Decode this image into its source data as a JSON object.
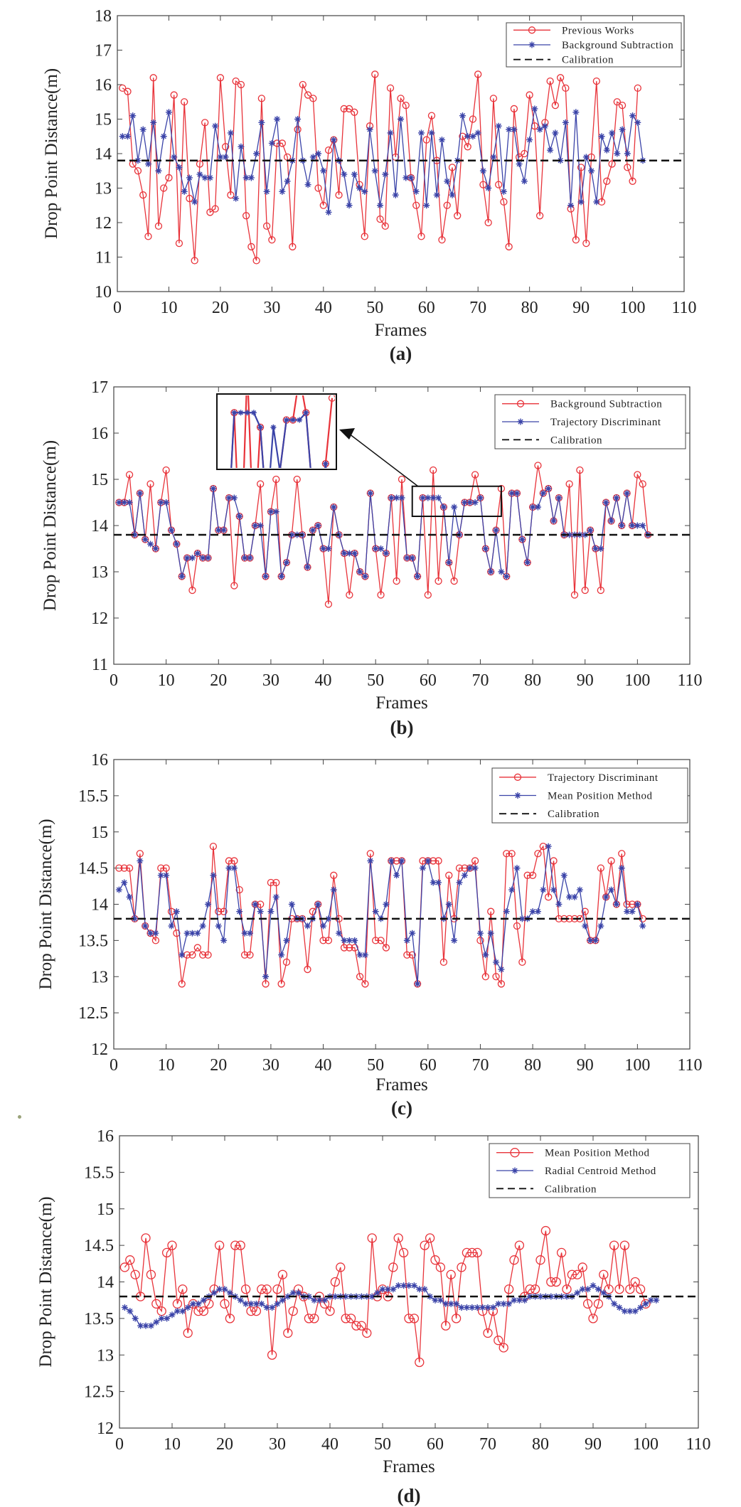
{
  "colors": {
    "red": "#e8333a",
    "blue": "#3a43a8",
    "black": "#111111",
    "axis": "#444444"
  },
  "chart_data": [
    {
      "type": "line",
      "id": "a",
      "caption": "(a)",
      "xlabel": "Frames",
      "ylabel": "Drop Point Distance(m)",
      "xlim": [
        0,
        110
      ],
      "ylim": [
        10,
        18
      ],
      "xticks": [
        "0",
        "10",
        "20",
        "30",
        "40",
        "50",
        "60",
        "70",
        "80",
        "90",
        "100",
        "110"
      ],
      "yticks": [
        "10",
        "11",
        "12",
        "13",
        "14",
        "15",
        "16",
        "17",
        "18"
      ],
      "calibration": 13.8,
      "legend": [
        "Previous Works",
        "Background Subtraction",
        "Calibration"
      ],
      "series": [
        {
          "name": "Previous Works",
          "color": "red",
          "marker": "circle",
          "values": [
            15.9,
            15.8,
            13.7,
            13.5,
            12.8,
            11.6,
            16.2,
            11.9,
            13.0,
            13.3,
            15.7,
            11.4,
            15.5,
            12.7,
            10.9,
            13.7,
            14.9,
            12.3,
            12.4,
            16.2,
            14.2,
            12.8,
            16.1,
            16.0,
            12.2,
            11.3,
            10.9,
            15.6,
            11.9,
            11.5,
            14.3,
            14.3,
            13.9,
            11.3,
            14.7,
            16.0,
            15.7,
            15.6,
            13.0,
            12.5,
            14.1,
            14.4,
            12.8,
            15.3,
            15.3,
            15.2,
            13.1,
            11.6,
            14.8,
            16.3,
            12.1,
            11.9,
            15.9,
            13.9,
            15.6,
            15.4,
            13.3,
            12.5,
            11.6,
            14.4,
            15.1,
            13.8,
            11.5,
            12.5,
            13.6,
            12.2,
            14.5,
            14.2,
            15.0,
            16.3,
            13.1,
            12.0,
            15.6,
            13.1,
            12.6,
            11.3,
            15.3,
            13.9,
            14.0,
            15.7,
            14.8,
            12.2,
            14.9,
            16.1,
            15.4,
            16.2,
            15.9,
            12.4,
            11.5,
            13.6,
            11.4,
            13.9,
            16.1,
            12.6,
            13.2,
            13.7,
            15.5,
            15.4,
            13.6,
            13.2,
            15.9
          ]
        },
        {
          "name": "Background Subtraction",
          "color": "blue",
          "marker": "star",
          "values": [
            14.5,
            14.5,
            15.1,
            13.8,
            14.7,
            13.7,
            14.9,
            13.5,
            14.5,
            15.2,
            13.9,
            13.6,
            12.9,
            13.3,
            12.6,
            13.4,
            13.3,
            13.3,
            14.8,
            13.9,
            13.9,
            14.6,
            12.7,
            14.2,
            13.3,
            13.3,
            14.0,
            14.9,
            12.9,
            14.3,
            15.0,
            12.9,
            13.2,
            13.8,
            15.0,
            13.8,
            13.1,
            13.9,
            14.0,
            13.5,
            12.3,
            14.4,
            13.8,
            13.4,
            12.5,
            13.4,
            13.0,
            12.9,
            14.7,
            13.5,
            12.5,
            13.4,
            14.6,
            12.8,
            15.0,
            13.3,
            13.3,
            12.9,
            14.6,
            12.5,
            14.6,
            12.8,
            14.4,
            13.2,
            12.8,
            13.8,
            15.1,
            14.5,
            14.5,
            14.6,
            13.5,
            13.0,
            13.9,
            14.8,
            12.9,
            14.7,
            14.7,
            13.7,
            13.2,
            14.4,
            15.3,
            14.7,
            14.8,
            14.1,
            14.6,
            13.8,
            14.9,
            12.5,
            15.2,
            12.6,
            13.9,
            13.5,
            12.6,
            14.5,
            14.1,
            14.6,
            14.0,
            14.7,
            14.0,
            15.1,
            14.9,
            13.8
          ]
        }
      ]
    },
    {
      "type": "line",
      "id": "b",
      "caption": "(b)",
      "xlabel": "Frames",
      "ylabel": "Drop Point Distance(m)",
      "xlim": [
        0,
        110
      ],
      "ylim": [
        11,
        17
      ],
      "xticks": [
        "0",
        "10",
        "20",
        "30",
        "40",
        "50",
        "60",
        "70",
        "80",
        "90",
        "100",
        "110"
      ],
      "yticks": [
        "11",
        "12",
        "13",
        "14",
        "15",
        "16",
        "17"
      ],
      "calibration": 13.8,
      "legend": [
        "Background Subtraction",
        "Trajectory Discriminant",
        "Calibration"
      ],
      "zoom_inset": {
        "x_range": [
          57,
          74
        ],
        "y_range": [
          14.2,
          14.85
        ]
      },
      "series": [
        {
          "name": "Background Subtraction",
          "color": "red",
          "marker": "circle",
          "values": [
            14.5,
            14.5,
            15.1,
            13.8,
            14.7,
            13.7,
            14.9,
            13.5,
            14.5,
            15.2,
            13.9,
            13.6,
            12.9,
            13.3,
            12.6,
            13.4,
            13.3,
            13.3,
            14.8,
            13.9,
            13.9,
            14.6,
            12.7,
            14.2,
            13.3,
            13.3,
            14.0,
            14.9,
            12.9,
            14.3,
            15.0,
            12.9,
            13.2,
            13.8,
            15.0,
            13.8,
            13.1,
            13.9,
            14.0,
            13.5,
            12.3,
            14.4,
            13.8,
            13.4,
            12.5,
            13.4,
            13.0,
            12.9,
            14.7,
            13.5,
            12.5,
            13.4,
            14.6,
            12.8,
            15.0,
            13.3,
            13.3,
            12.9,
            14.6,
            12.5,
            15.2,
            12.8,
            14.4,
            13.2,
            12.8,
            13.8,
            14.5,
            14.5,
            15.1,
            14.6,
            13.5,
            13.0,
            13.9,
            14.8,
            12.9,
            14.7,
            14.7,
            13.7,
            13.2,
            14.4,
            15.3,
            14.7,
            14.8,
            14.1,
            14.6,
            13.8,
            14.9,
            12.5,
            15.2,
            12.6,
            13.9,
            13.5,
            12.6,
            14.5,
            14.1,
            14.6,
            14.0,
            14.7,
            14.0,
            15.1,
            14.9,
            13.8
          ]
        },
        {
          "name": "Trajectory Discriminant",
          "color": "blue",
          "marker": "star",
          "values": [
            14.5,
            14.5,
            14.5,
            13.8,
            14.7,
            13.7,
            13.6,
            13.5,
            14.5,
            14.5,
            13.9,
            13.6,
            12.9,
            13.3,
            13.3,
            13.4,
            13.3,
            13.3,
            14.8,
            13.9,
            13.9,
            14.6,
            14.6,
            14.2,
            13.3,
            13.3,
            14.0,
            14.0,
            12.9,
            14.3,
            14.3,
            12.9,
            13.2,
            13.8,
            13.8,
            13.8,
            13.1,
            13.9,
            14.0,
            13.5,
            13.5,
            14.4,
            13.8,
            13.4,
            13.4,
            13.4,
            13.0,
            12.9,
            14.7,
            13.5,
            13.5,
            13.4,
            14.6,
            14.6,
            14.6,
            13.3,
            13.3,
            12.9,
            14.6,
            14.6,
            14.6,
            14.6,
            14.4,
            13.2,
            14.4,
            13.8,
            14.5,
            14.5,
            14.5,
            14.6,
            13.5,
            13.0,
            13.9,
            13.0,
            12.9,
            14.7,
            14.7,
            13.7,
            13.2,
            14.4,
            14.4,
            14.7,
            14.8,
            14.1,
            14.6,
            13.8,
            13.8,
            13.8,
            13.8,
            13.8,
            13.9,
            13.5,
            13.5,
            14.5,
            14.1,
            14.6,
            14.0,
            14.7,
            14.0,
            14.0,
            14.0,
            13.8
          ]
        }
      ]
    },
    {
      "type": "line",
      "id": "c",
      "caption": "(c)",
      "xlabel": "Frames",
      "ylabel": "Drop Point Distance(m)",
      "xlim": [
        0,
        110
      ],
      "ylim": [
        12,
        16
      ],
      "xticks": [
        "0",
        "10",
        "20",
        "30",
        "40",
        "50",
        "60",
        "70",
        "80",
        "90",
        "100",
        "110"
      ],
      "yticks": [
        "12",
        "12.5",
        "13",
        "13.5",
        "14",
        "14.5",
        "15",
        "15.5",
        "16"
      ],
      "calibration": 13.8,
      "legend": [
        "Trajectory Discriminant",
        "Mean Position Method",
        "Calibration"
      ],
      "series": [
        {
          "name": "Trajectory Discriminant",
          "color": "red",
          "marker": "circle",
          "values": [
            14.5,
            14.5,
            14.5,
            13.8,
            14.7,
            13.7,
            13.6,
            13.5,
            14.5,
            14.5,
            13.9,
            13.6,
            12.9,
            13.3,
            13.3,
            13.4,
            13.3,
            13.3,
            14.8,
            13.9,
            13.9,
            14.6,
            14.6,
            14.2,
            13.3,
            13.3,
            14.0,
            14.0,
            12.9,
            14.3,
            14.3,
            12.9,
            13.2,
            13.8,
            13.8,
            13.8,
            13.1,
            13.9,
            14.0,
            13.5,
            13.5,
            14.4,
            13.8,
            13.4,
            13.4,
            13.4,
            13.0,
            12.9,
            14.7,
            13.5,
            13.5,
            13.4,
            14.6,
            14.6,
            14.6,
            13.3,
            13.3,
            12.9,
            14.6,
            14.6,
            14.6,
            14.6,
            13.2,
            14.4,
            13.8,
            14.5,
            14.5,
            14.5,
            14.6,
            13.5,
            13.0,
            13.9,
            13.0,
            12.9,
            14.7,
            14.7,
            13.7,
            13.2,
            14.4,
            14.4,
            14.7,
            14.8,
            14.1,
            14.6,
            13.8,
            13.8,
            13.8,
            13.8,
            13.8,
            13.9,
            13.5,
            13.5,
            14.5,
            14.1,
            14.6,
            14.0,
            14.7,
            14.0,
            14.0,
            14.0,
            13.8
          ]
        },
        {
          "name": "Mean Position Method",
          "color": "blue",
          "marker": "star",
          "values": [
            14.2,
            14.3,
            14.1,
            13.8,
            14.6,
            13.7,
            13.6,
            13.6,
            14.4,
            14.4,
            13.7,
            13.9,
            13.3,
            13.6,
            13.6,
            13.6,
            13.7,
            14.0,
            14.4,
            13.7,
            13.5,
            14.5,
            14.5,
            13.9,
            13.6,
            13.6,
            14.0,
            13.9,
            13.0,
            13.9,
            14.1,
            13.3,
            13.5,
            14.0,
            13.8,
            13.8,
            13.7,
            13.8,
            14.0,
            13.7,
            13.8,
            14.2,
            13.6,
            13.5,
            13.5,
            13.5,
            13.3,
            13.3,
            14.6,
            13.9,
            13.8,
            14.0,
            14.6,
            14.4,
            14.6,
            13.5,
            13.6,
            12.9,
            14.5,
            14.6,
            14.3,
            14.3,
            13.8,
            14.0,
            13.5,
            14.3,
            14.4,
            14.5,
            14.5,
            13.6,
            13.3,
            13.6,
            13.2,
            13.1,
            13.9,
            14.2,
            14.5,
            13.8,
            13.8,
            13.9,
            13.9,
            14.2,
            14.8,
            14.2,
            14.0,
            14.4,
            14.1,
            14.1,
            14.2,
            13.7,
            13.5,
            13.5,
            13.7,
            14.1,
            14.2,
            14.0,
            14.5,
            13.9,
            13.9,
            14.0,
            13.7
          ]
        }
      ]
    },
    {
      "type": "line",
      "id": "d",
      "caption": "(d)",
      "xlabel": "Frames",
      "ylabel": "Drop Point Distance(m)",
      "xlim": [
        0,
        110
      ],
      "ylim": [
        12,
        16
      ],
      "xticks": [
        "0",
        "10",
        "20",
        "30",
        "40",
        "50",
        "60",
        "70",
        "80",
        "90",
        "100",
        "110"
      ],
      "yticks": [
        "12",
        "12.5",
        "13",
        "13.5",
        "14",
        "14.5",
        "15",
        "15.5",
        "16"
      ],
      "calibration": 13.8,
      "legend": [
        "Mean Position Method",
        "Radial Centroid Method",
        "Calibration"
      ],
      "series": [
        {
          "name": "Mean Position Method",
          "color": "red",
          "marker": "circle",
          "values": [
            14.2,
            14.3,
            14.1,
            13.8,
            14.6,
            14.1,
            13.7,
            13.6,
            14.4,
            14.5,
            13.7,
            13.9,
            13.3,
            13.7,
            13.6,
            13.6,
            13.7,
            13.9,
            14.5,
            13.7,
            13.5,
            14.5,
            14.5,
            13.9,
            13.6,
            13.6,
            13.9,
            13.9,
            13.0,
            13.9,
            14.1,
            13.3,
            13.6,
            13.9,
            13.8,
            13.5,
            13.5,
            13.8,
            13.7,
            13.6,
            14.0,
            14.2,
            13.5,
            13.5,
            13.4,
            13.4,
            13.3,
            14.6,
            13.8,
            13.9,
            13.8,
            14.2,
            14.6,
            14.4,
            13.5,
            13.5,
            12.9,
            14.5,
            14.6,
            14.3,
            14.2,
            13.4,
            14.1,
            13.5,
            14.2,
            14.4,
            14.4,
            14.4,
            13.6,
            13.3,
            13.6,
            13.2,
            13.1,
            13.9,
            14.3,
            14.5,
            13.8,
            13.9,
            13.9,
            14.3,
            14.7,
            14.0,
            14.0,
            14.4,
            13.9,
            14.1,
            14.1,
            14.2,
            13.7,
            13.5,
            13.7,
            14.1,
            13.9,
            14.5,
            13.9,
            14.5,
            13.9,
            14.0,
            13.9,
            13.7
          ]
        },
        {
          "name": "Radial Centroid Method",
          "color": "blue",
          "marker": "star",
          "values": [
            13.65,
            13.6,
            13.5,
            13.4,
            13.4,
            13.4,
            13.45,
            13.5,
            13.5,
            13.55,
            13.6,
            13.6,
            13.65,
            13.7,
            13.7,
            13.75,
            13.8,
            13.85,
            13.9,
            13.9,
            13.85,
            13.8,
            13.75,
            13.7,
            13.7,
            13.7,
            13.7,
            13.65,
            13.65,
            13.7,
            13.75,
            13.8,
            13.85,
            13.85,
            13.8,
            13.8,
            13.75,
            13.75,
            13.75,
            13.8,
            13.8,
            13.8,
            13.8,
            13.8,
            13.8,
            13.8,
            13.8,
            13.8,
            13.85,
            13.9,
            13.9,
            13.9,
            13.95,
            13.95,
            13.95,
            13.95,
            13.9,
            13.9,
            13.8,
            13.75,
            13.75,
            13.7,
            13.7,
            13.7,
            13.65,
            13.65,
            13.65,
            13.65,
            13.65,
            13.65,
            13.65,
            13.7,
            13.7,
            13.7,
            13.75,
            13.75,
            13.75,
            13.8,
            13.8,
            13.8,
            13.8,
            13.8,
            13.8,
            13.8,
            13.8,
            13.8,
            13.85,
            13.9,
            13.9,
            13.95,
            13.9,
            13.85,
            13.8,
            13.7,
            13.65,
            13.6,
            13.6,
            13.6,
            13.65,
            13.7,
            13.75,
            13.75
          ]
        }
      ]
    }
  ]
}
